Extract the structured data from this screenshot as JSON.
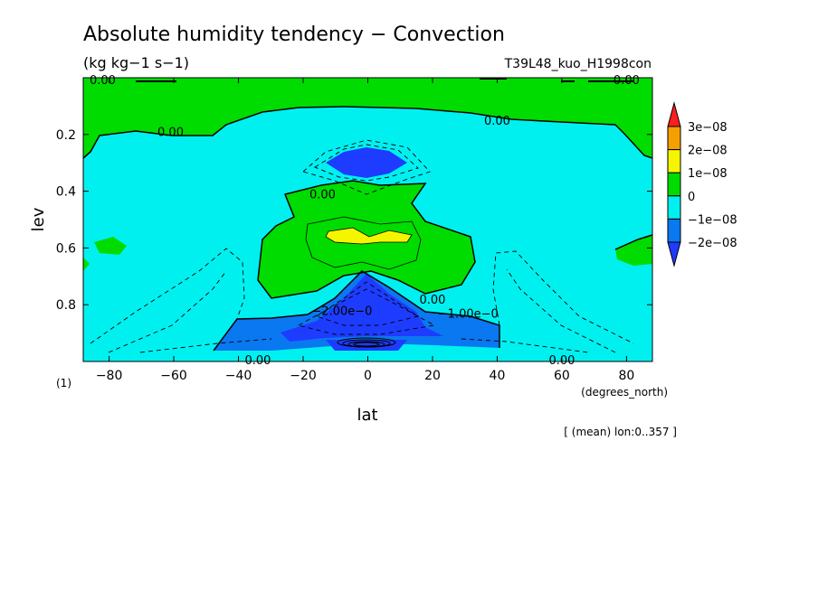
{
  "chart_data": {
    "type": "heatmap",
    "title": "Absolute humidity tendency − Convection",
    "subtitle": "(kg kg−1 s−1)",
    "experiment": "T39L48_kuo_H1998con",
    "xlabel": "lat",
    "ylabel": "lev",
    "x_unit": "(degrees_north)",
    "y_unit": "(1)",
    "mean_note": "[ (mean) lon:0..357 ]",
    "xlim": [
      -88,
      88
    ],
    "ylim": [
      1.0,
      0.0
    ],
    "x_ticks": [
      -80,
      -60,
      -40,
      -20,
      0,
      20,
      40,
      60,
      80
    ],
    "x_tick_labels": [
      "−80",
      "−60",
      "−40",
      "−20",
      "0",
      "20",
      "40",
      "60",
      "80"
    ],
    "y_ticks": [
      0.2,
      0.4,
      0.6,
      0.8
    ],
    "y_tick_labels": [
      "0.2",
      "0.4",
      "0.6",
      "0.8"
    ],
    "colorbar": {
      "labels": [
        "3e−08",
        "2e−08",
        "1e−08",
        "0",
        "−1e−08",
        "−2e−08"
      ],
      "colors": [
        "#ff1e1e",
        "#f5a000",
        "#f5f500",
        "#00dc00",
        "#00f0f0",
        "#0a78f0",
        "#1e3cff"
      ],
      "boundaries": [
        3e-08,
        2e-08,
        1e-08,
        0,
        -1e-08,
        -2e-08
      ]
    },
    "contour_labels": [
      {
        "text": "0.00",
        "lat": -82,
        "lev": 0.0
      },
      {
        "text": "0.00",
        "lat": 80,
        "lev": 0.0
      },
      {
        "text": "0.00",
        "lat": -61,
        "lev": 0.19
      },
      {
        "text": "0.00",
        "lat": 40,
        "lev": 0.15
      },
      {
        "text": "0.00",
        "lat": -14,
        "lev": 0.41
      },
      {
        "text": "0.00",
        "lat": 20,
        "lev": 0.78
      },
      {
        "text": "−1.00e−0",
        "lat": 31,
        "lev": 0.83
      },
      {
        "text": "−2.00e−0",
        "lat": -8,
        "lev": 0.82
      },
      {
        "text": "0.00",
        "lat": -34,
        "lev": 1.0
      },
      {
        "text": "0.00",
        "lat": 60,
        "lev": 1.0
      }
    ],
    "regions": [
      {
        "class": "0 to 1e-08",
        "desc": "upper layer lev < 0.2 and mid-level dome centered on equator"
      },
      {
        "class": "-1e-08 to 0",
        "desc": "broad background from lev 0.2 to 1.0"
      },
      {
        "class": "1e-08 to 2e-08",
        "desc": "small maximum near lat 0, lev 0.55"
      },
      {
        "class": "below -2e-08",
        "desc": "minimum near lat 0, lev 0.3 and lev 0.8-0.95"
      }
    ]
  }
}
